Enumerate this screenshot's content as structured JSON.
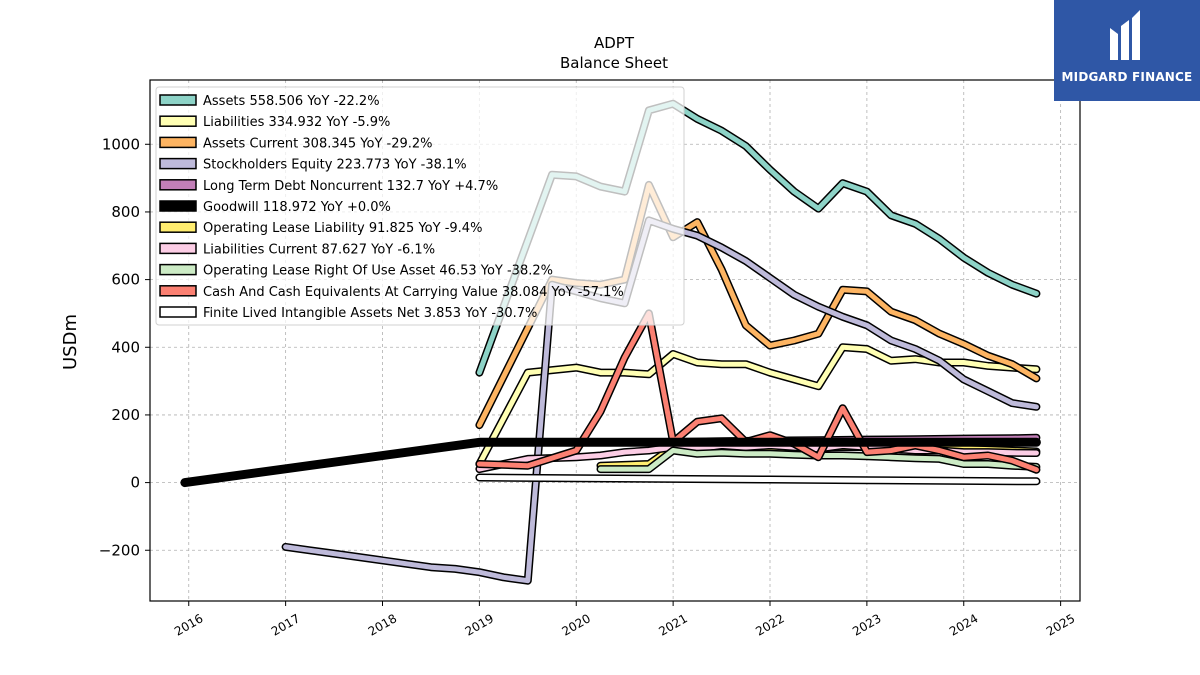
{
  "logo": {
    "text": "MIDGARD FINANCE",
    "bg": "#2f57a6"
  },
  "chart_data": {
    "type": "line",
    "title": "ADPT",
    "subtitle": "Balance  Sheet",
    "xlabel": "",
    "ylabel": "USDm",
    "xlim": [
      2015.6,
      2025.2
    ],
    "ylim": [
      -350,
      1190
    ],
    "x_ticks": [
      2016,
      2017,
      2018,
      2019,
      2020,
      2021,
      2022,
      2023,
      2024,
      2025
    ],
    "y_ticks": [
      -200,
      0,
      200,
      400,
      600,
      800,
      1000
    ],
    "y_tick_labels": [
      "−200",
      "0",
      "200",
      "400",
      "600",
      "800",
      "1000"
    ],
    "grid": true,
    "legend_position": "top-left",
    "series": [
      {
        "name": "Assets  558.506 YoY -22.2%",
        "color": "#8dd3c7",
        "width": 5,
        "points": [
          [
            2019.0,
            325
          ],
          [
            2019.75,
            910
          ],
          [
            2020.0,
            905
          ],
          [
            2020.25,
            875
          ],
          [
            2020.5,
            860
          ],
          [
            2020.75,
            1100
          ],
          [
            2021.0,
            1120
          ],
          [
            2021.25,
            1075
          ],
          [
            2021.5,
            1040
          ],
          [
            2021.75,
            995
          ],
          [
            2022.0,
            925
          ],
          [
            2022.25,
            860
          ],
          [
            2022.5,
            810
          ],
          [
            2022.75,
            885
          ],
          [
            2023.0,
            860
          ],
          [
            2023.25,
            790
          ],
          [
            2023.5,
            765
          ],
          [
            2023.75,
            720
          ],
          [
            2024.0,
            665
          ],
          [
            2024.25,
            620
          ],
          [
            2024.5,
            585
          ],
          [
            2024.75,
            558.5
          ]
        ]
      },
      {
        "name": "Liabilities  334.932 YoY -5.9%",
        "color": "#ffffb3",
        "width": 5,
        "points": [
          [
            2019.0,
            55
          ],
          [
            2019.5,
            325
          ],
          [
            2020.0,
            340
          ],
          [
            2020.25,
            325
          ],
          [
            2020.5,
            325
          ],
          [
            2020.75,
            320
          ],
          [
            2021.0,
            380
          ],
          [
            2021.25,
            355
          ],
          [
            2021.5,
            350
          ],
          [
            2021.75,
            350
          ],
          [
            2022.0,
            325
          ],
          [
            2022.25,
            305
          ],
          [
            2022.5,
            285
          ],
          [
            2022.75,
            400
          ],
          [
            2023.0,
            395
          ],
          [
            2023.25,
            360
          ],
          [
            2023.5,
            365
          ],
          [
            2023.75,
            355
          ],
          [
            2024.0,
            355
          ],
          [
            2024.25,
            345
          ],
          [
            2024.5,
            340
          ],
          [
            2024.75,
            335
          ]
        ]
      },
      {
        "name": "Assets Current  308.345 YoY -29.2%",
        "color": "#fdb462",
        "width": 5,
        "points": [
          [
            2019.0,
            170
          ],
          [
            2019.75,
            600
          ],
          [
            2020.0,
            590
          ],
          [
            2020.25,
            585
          ],
          [
            2020.5,
            600
          ],
          [
            2020.75,
            880
          ],
          [
            2021.0,
            725
          ],
          [
            2021.25,
            770
          ],
          [
            2021.5,
            630
          ],
          [
            2021.75,
            465
          ],
          [
            2022.0,
            405
          ],
          [
            2022.25,
            420
          ],
          [
            2022.5,
            440
          ],
          [
            2022.75,
            570
          ],
          [
            2023.0,
            565
          ],
          [
            2023.25,
            505
          ],
          [
            2023.5,
            480
          ],
          [
            2023.75,
            440
          ],
          [
            2024.0,
            410
          ],
          [
            2024.25,
            375
          ],
          [
            2024.5,
            350
          ],
          [
            2024.75,
            308
          ]
        ]
      },
      {
        "name": "Stockholders Equity  223.773 YoY -38.1%",
        "color": "#bebada",
        "width": 5,
        "points": [
          [
            2017.0,
            -190
          ],
          [
            2017.25,
            -200
          ],
          [
            2017.5,
            -210
          ],
          [
            2017.75,
            -220
          ],
          [
            2018.0,
            -230
          ],
          [
            2018.25,
            -240
          ],
          [
            2018.5,
            -250
          ],
          [
            2018.75,
            -255
          ],
          [
            2019.0,
            -265
          ],
          [
            2019.25,
            -280
          ],
          [
            2019.5,
            -290
          ],
          [
            2019.75,
            585
          ],
          [
            2020.0,
            565
          ],
          [
            2020.25,
            545
          ],
          [
            2020.5,
            530
          ],
          [
            2020.75,
            775
          ],
          [
            2021.0,
            750
          ],
          [
            2021.25,
            730
          ],
          [
            2021.5,
            695
          ],
          [
            2021.75,
            655
          ],
          [
            2022.0,
            605
          ],
          [
            2022.25,
            555
          ],
          [
            2022.5,
            520
          ],
          [
            2022.75,
            490
          ],
          [
            2023.0,
            465
          ],
          [
            2023.25,
            420
          ],
          [
            2023.5,
            395
          ],
          [
            2023.75,
            360
          ],
          [
            2024.0,
            305
          ],
          [
            2024.25,
            270
          ],
          [
            2024.5,
            235
          ],
          [
            2024.75,
            224
          ]
        ]
      },
      {
        "name": "Long Term Debt Noncurrent  132.7 YoY +4.7%",
        "color": "#c37fb8",
        "width": 5,
        "points": [
          [
            2021.0,
            120
          ],
          [
            2021.5,
            122
          ],
          [
            2022.0,
            124
          ],
          [
            2022.5,
            125
          ],
          [
            2023.0,
            127
          ],
          [
            2023.5,
            128
          ],
          [
            2024.0,
            130
          ],
          [
            2024.5,
            131
          ],
          [
            2024.75,
            132.7
          ]
        ]
      },
      {
        "name": "Goodwill  118.972 YoY +0.0%",
        "color": "#000000",
        "width": 9,
        "points": [
          [
            2015.96,
            0
          ],
          [
            2019.0,
            118.972
          ],
          [
            2024.75,
            118.972
          ]
        ]
      },
      {
        "name": "Operating Lease Liability  91.825 YoY -9.4%",
        "color": "#ffed6f",
        "width": 5,
        "points": [
          [
            2020.25,
            50
          ],
          [
            2020.75,
            55
          ],
          [
            2021.0,
            105
          ],
          [
            2021.25,
            100
          ],
          [
            2021.75,
            105
          ],
          [
            2022.25,
            102
          ],
          [
            2022.75,
            105
          ],
          [
            2023.0,
            105
          ],
          [
            2023.5,
            102
          ],
          [
            2024.0,
            100
          ],
          [
            2024.5,
            95
          ],
          [
            2024.75,
            91.8
          ]
        ]
      },
      {
        "name": "Liabilities Current  87.627 YoY -6.1%",
        "color": "#fccde5",
        "width": 5,
        "points": [
          [
            2019.0,
            40
          ],
          [
            2019.5,
            70
          ],
          [
            2020.0,
            75
          ],
          [
            2020.25,
            80
          ],
          [
            2020.5,
            90
          ],
          [
            2020.75,
            95
          ],
          [
            2021.0,
            105
          ],
          [
            2021.25,
            100
          ],
          [
            2021.5,
            110
          ],
          [
            2021.75,
            105
          ],
          [
            2022.0,
            110
          ],
          [
            2022.25,
            105
          ],
          [
            2022.5,
            100
          ],
          [
            2022.75,
            110
          ],
          [
            2023.0,
            105
          ],
          [
            2023.25,
            100
          ],
          [
            2023.5,
            95
          ],
          [
            2023.75,
            95
          ],
          [
            2024.0,
            90
          ],
          [
            2024.25,
            90
          ],
          [
            2024.5,
            88
          ],
          [
            2024.75,
            87.6
          ]
        ]
      },
      {
        "name": "Operating Lease Right Of Use Asset  46.53 YoY -38.2%",
        "color": "#ccebc5",
        "width": 5,
        "points": [
          [
            2020.25,
            40
          ],
          [
            2020.75,
            40
          ],
          [
            2021.0,
            95
          ],
          [
            2021.25,
            85
          ],
          [
            2021.5,
            88
          ],
          [
            2021.75,
            85
          ],
          [
            2022.0,
            85
          ],
          [
            2022.25,
            82
          ],
          [
            2022.5,
            80
          ],
          [
            2022.75,
            80
          ],
          [
            2023.0,
            78
          ],
          [
            2023.25,
            75
          ],
          [
            2023.5,
            72
          ],
          [
            2023.75,
            70
          ],
          [
            2024.0,
            55
          ],
          [
            2024.25,
            55
          ],
          [
            2024.5,
            50
          ],
          [
            2024.75,
            46.5
          ]
        ]
      },
      {
        "name": "Cash And Cash Equivalents At Carrying Value  38.084 YoY -57.1%",
        "color": "#fb8072",
        "width": 5,
        "points": [
          [
            2019.0,
            55
          ],
          [
            2019.5,
            50
          ],
          [
            2020.0,
            95
          ],
          [
            2020.25,
            210
          ],
          [
            2020.5,
            370
          ],
          [
            2020.75,
            500
          ],
          [
            2021.0,
            120
          ],
          [
            2021.25,
            180
          ],
          [
            2021.5,
            190
          ],
          [
            2021.75,
            120
          ],
          [
            2022.0,
            140
          ],
          [
            2022.25,
            115
          ],
          [
            2022.5,
            75
          ],
          [
            2022.75,
            220
          ],
          [
            2023.0,
            90
          ],
          [
            2023.25,
            95
          ],
          [
            2023.5,
            110
          ],
          [
            2023.75,
            95
          ],
          [
            2024.0,
            75
          ],
          [
            2024.25,
            80
          ],
          [
            2024.5,
            65
          ],
          [
            2024.75,
            38
          ]
        ]
      },
      {
        "name": "Finite Lived Intangible Assets Net  3.853 YoY -30.7%",
        "color": "#ffffff",
        "width": 5,
        "points": [
          [
            2019.0,
            15
          ],
          [
            2020.0,
            13
          ],
          [
            2021.0,
            11
          ],
          [
            2022.0,
            9
          ],
          [
            2023.0,
            7
          ],
          [
            2024.0,
            5
          ],
          [
            2024.75,
            3.9
          ]
        ]
      }
    ]
  }
}
